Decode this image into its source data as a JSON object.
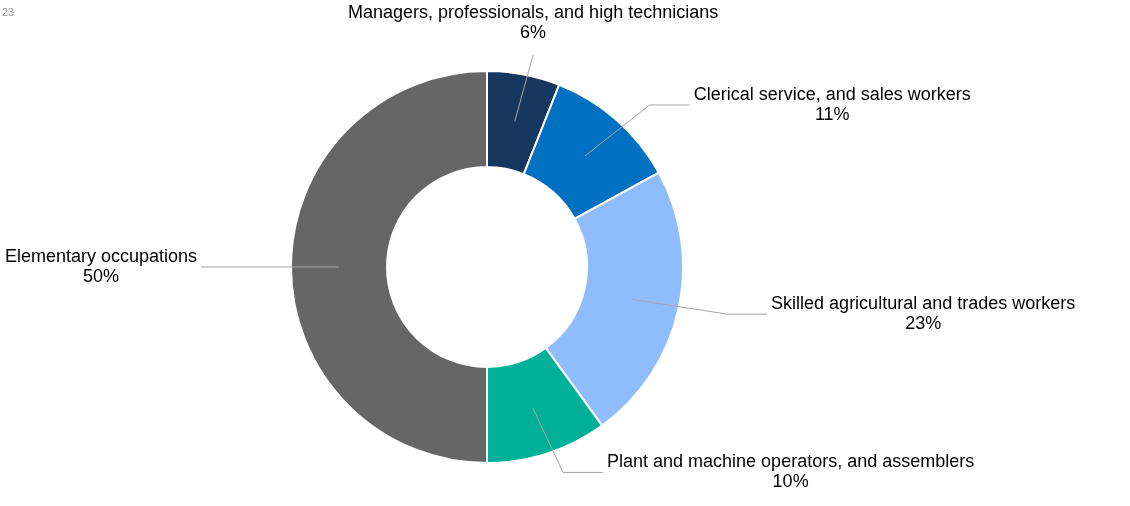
{
  "chart_data": {
    "type": "donut",
    "categories": [
      "Managers, professionals, and high technicians",
      "Clerical service, and sales workers",
      "Skilled agricultural and trades workers",
      "Plant and machine operators, and assemblers",
      "Elementary occupations"
    ],
    "values": [
      6,
      11,
      23,
      10,
      50
    ],
    "value_labels": [
      "6%",
      "11%",
      "23%",
      "10%",
      "50%"
    ],
    "colors": [
      "#17375e",
      "#0070c0",
      "#8fbcff",
      "#00b197",
      "#666666"
    ],
    "legend": false,
    "annotations": [
      "23"
    ]
  }
}
